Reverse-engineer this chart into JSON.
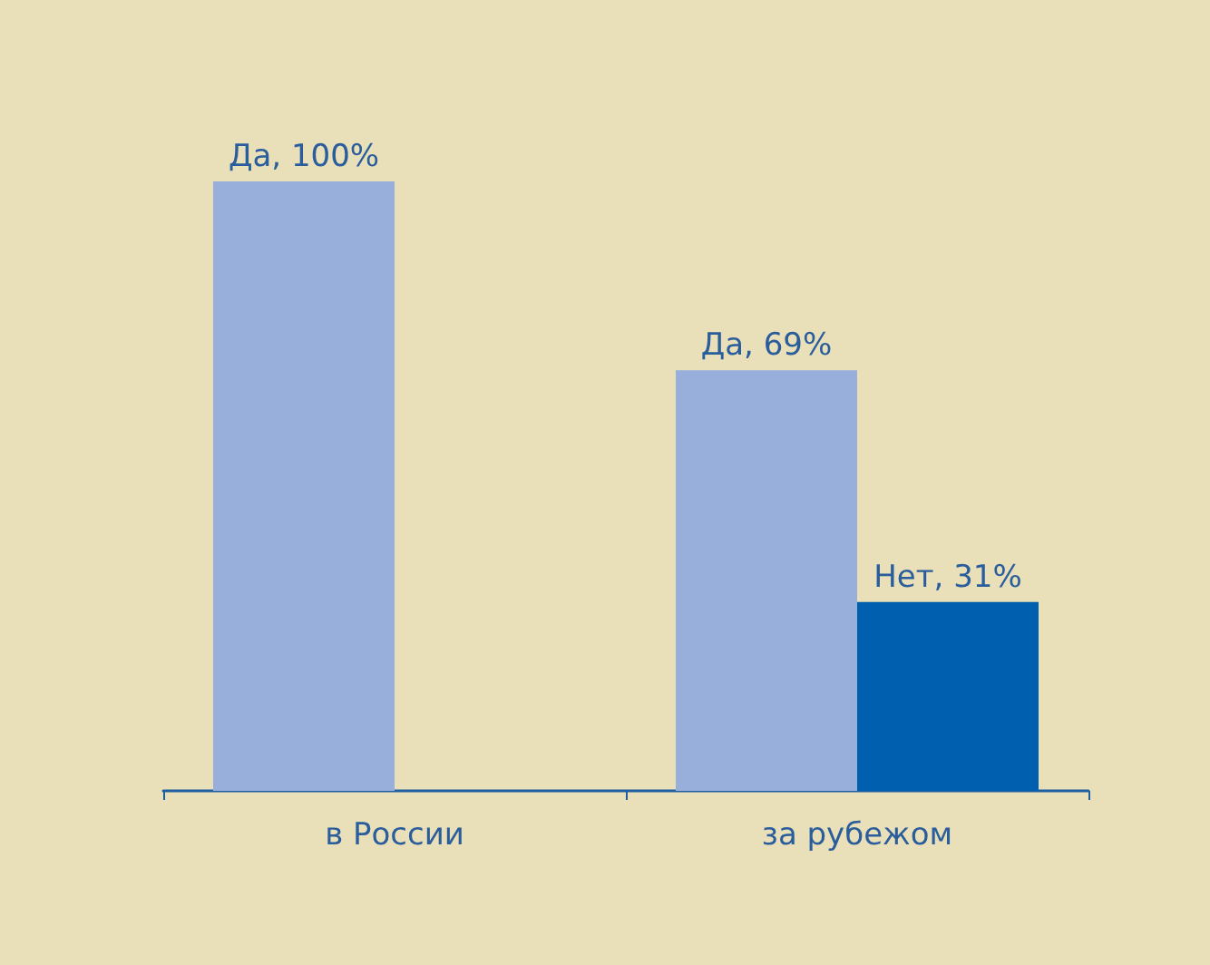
{
  "chart_data": {
    "type": "bar",
    "categories": [
      "в России",
      "за рубежом"
    ],
    "series": [
      {
        "color": "#97afda",
        "values": [
          100,
          69
        ],
        "value_labels": [
          "Да, 100%",
          "Да, 69%"
        ]
      },
      {
        "color": "#005fae",
        "values": [
          null,
          31
        ],
        "value_labels": [
          null,
          "Нет, 31%"
        ]
      }
    ]
  }
}
